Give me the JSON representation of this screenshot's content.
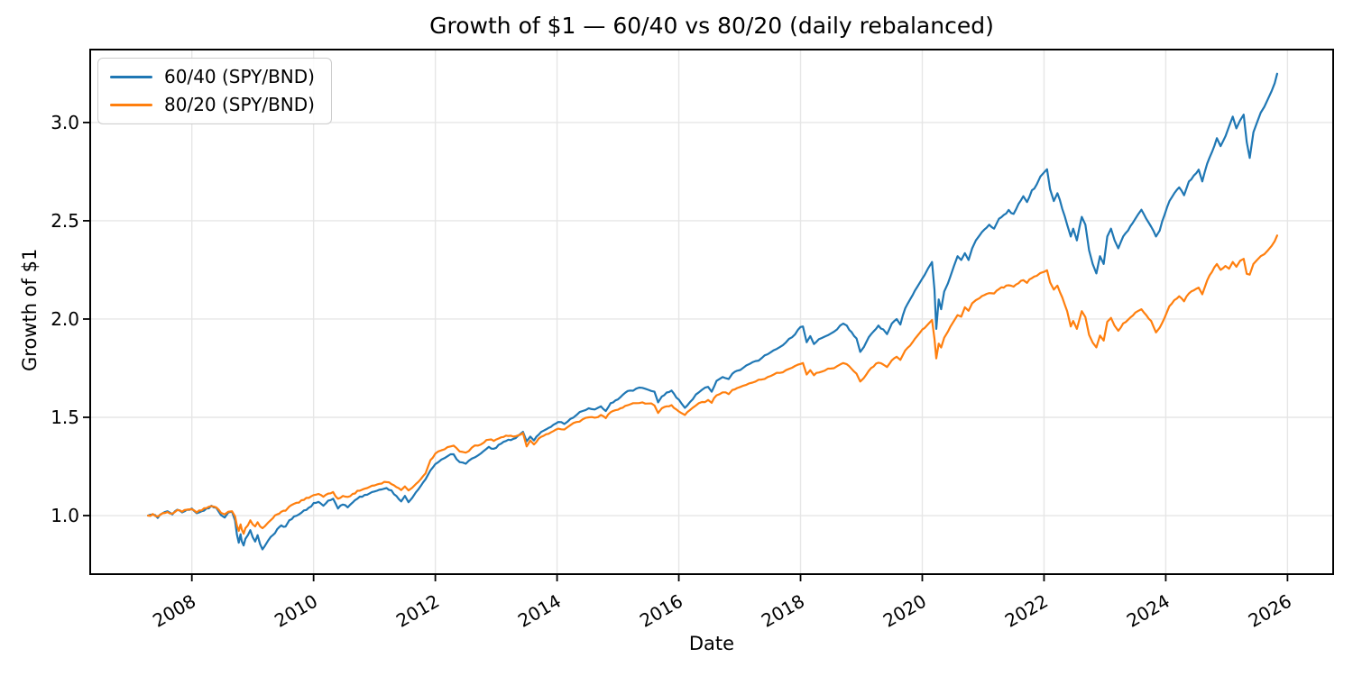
{
  "title": "Growth of $1 — 60/40 vs 80/20 (daily rebalanced)",
  "xlabel": "Date",
  "ylabel": "Growth of $1",
  "colors": {
    "background": "#ffffff",
    "grid": "#e6e6e6",
    "spine": "#000000",
    "series_blue": "#1f77b4",
    "series_orange": "#ff7f0e"
  },
  "chart_data": {
    "type": "line",
    "title": "Growth of $1 — 60/40 vs 80/20 (daily rebalanced)",
    "xlabel": "Date",
    "ylabel": "Growth of $1",
    "xlim": [
      2006.33,
      2026.75
    ],
    "ylim": [
      0.702,
      3.371
    ],
    "xticks": [
      2008,
      2010,
      2012,
      2014,
      2016,
      2018,
      2020,
      2022,
      2024,
      2026
    ],
    "yticks": [
      1.0,
      1.5,
      2.0,
      2.5,
      3.0
    ],
    "grid": true,
    "legend_position": "upper left",
    "series": [
      {
        "name": "60/40 (SPY/BND)",
        "color": "#1f77b4",
        "column": 1
      },
      {
        "name": "80/20 (SPY/BND)",
        "color": "#ff7f0e",
        "column": 2
      }
    ],
    "columns": [
      "year",
      "60/40 (SPY/BND)",
      "80/20 (SPY/BND)"
    ],
    "points": [
      [
        2007.28,
        1.0,
        1.0
      ],
      [
        2007.36,
        1.005,
        1.008
      ],
      [
        2007.44,
        0.988,
        0.996
      ],
      [
        2007.52,
        1.012,
        1.012
      ],
      [
        2007.6,
        1.022,
        1.018
      ],
      [
        2007.68,
        1.006,
        1.01
      ],
      [
        2007.76,
        1.03,
        1.028
      ],
      [
        2007.84,
        1.016,
        1.02
      ],
      [
        2007.92,
        1.03,
        1.03
      ],
      [
        2008.0,
        1.036,
        1.032
      ],
      [
        2008.08,
        1.012,
        1.016
      ],
      [
        2008.16,
        1.022,
        1.026
      ],
      [
        2008.24,
        1.036,
        1.038
      ],
      [
        2008.32,
        1.05,
        1.048
      ],
      [
        2008.4,
        1.04,
        1.042
      ],
      [
        2008.48,
        1.002,
        1.014
      ],
      [
        2008.54,
        0.99,
        1.006
      ],
      [
        2008.6,
        1.016,
        1.02
      ],
      [
        2008.66,
        1.02,
        1.022
      ],
      [
        2008.71,
        0.975,
        0.996
      ],
      [
        2008.74,
        0.905,
        0.95
      ],
      [
        2008.77,
        0.862,
        0.922
      ],
      [
        2008.8,
        0.905,
        0.955
      ],
      [
        2008.82,
        0.87,
        0.93
      ],
      [
        2008.85,
        0.848,
        0.908
      ],
      [
        2008.88,
        0.882,
        0.936
      ],
      [
        2008.92,
        0.9,
        0.95
      ],
      [
        2008.96,
        0.926,
        0.976
      ],
      [
        2009.0,
        0.89,
        0.955
      ],
      [
        2009.04,
        0.868,
        0.945
      ],
      [
        2009.08,
        0.9,
        0.966
      ],
      [
        2009.12,
        0.855,
        0.945
      ],
      [
        2009.16,
        0.828,
        0.936
      ],
      [
        2009.2,
        0.846,
        0.946
      ],
      [
        2009.26,
        0.876,
        0.966
      ],
      [
        2009.33,
        0.9,
        0.986
      ],
      [
        2009.4,
        0.93,
        1.006
      ],
      [
        2009.47,
        0.95,
        1.02
      ],
      [
        2009.54,
        0.944,
        1.025
      ],
      [
        2009.6,
        0.976,
        1.046
      ],
      [
        2009.68,
        0.996,
        1.06
      ],
      [
        2009.76,
        1.006,
        1.066
      ],
      [
        2009.84,
        1.026,
        1.08
      ],
      [
        2009.92,
        1.04,
        1.09
      ],
      [
        2010.0,
        1.064,
        1.104
      ],
      [
        2010.08,
        1.07,
        1.11
      ],
      [
        2010.16,
        1.05,
        1.096
      ],
      [
        2010.24,
        1.076,
        1.112
      ],
      [
        2010.32,
        1.086,
        1.12
      ],
      [
        2010.4,
        1.036,
        1.086
      ],
      [
        2010.48,
        1.056,
        1.1
      ],
      [
        2010.56,
        1.042,
        1.095
      ],
      [
        2010.64,
        1.066,
        1.11
      ],
      [
        2010.72,
        1.086,
        1.126
      ],
      [
        2010.8,
        1.096,
        1.132
      ],
      [
        2010.88,
        1.106,
        1.14
      ],
      [
        2010.96,
        1.12,
        1.152
      ],
      [
        2011.04,
        1.126,
        1.158
      ],
      [
        2011.12,
        1.133,
        1.163
      ],
      [
        2011.2,
        1.14,
        1.17
      ],
      [
        2011.28,
        1.128,
        1.16
      ],
      [
        2011.36,
        1.1,
        1.145
      ],
      [
        2011.44,
        1.072,
        1.13
      ],
      [
        2011.5,
        1.1,
        1.148
      ],
      [
        2011.56,
        1.068,
        1.128
      ],
      [
        2011.62,
        1.09,
        1.142
      ],
      [
        2011.68,
        1.118,
        1.16
      ],
      [
        2011.76,
        1.15,
        1.185
      ],
      [
        2011.84,
        1.185,
        1.215
      ],
      [
        2011.92,
        1.23,
        1.282
      ],
      [
        2012.0,
        1.262,
        1.315
      ],
      [
        2012.1,
        1.285,
        1.332
      ],
      [
        2012.2,
        1.302,
        1.348
      ],
      [
        2012.3,
        1.312,
        1.356
      ],
      [
        2012.4,
        1.272,
        1.326
      ],
      [
        2012.5,
        1.264,
        1.32
      ],
      [
        2012.6,
        1.29,
        1.346
      ],
      [
        2012.7,
        1.306,
        1.356
      ],
      [
        2012.8,
        1.33,
        1.372
      ],
      [
        2012.88,
        1.35,
        1.386
      ],
      [
        2012.96,
        1.34,
        1.38
      ],
      [
        2013.04,
        1.36,
        1.392
      ],
      [
        2013.12,
        1.375,
        1.4
      ],
      [
        2013.2,
        1.386,
        1.405
      ],
      [
        2013.28,
        1.39,
        1.402
      ],
      [
        2013.36,
        1.406,
        1.408
      ],
      [
        2013.44,
        1.426,
        1.42
      ],
      [
        2013.5,
        1.378,
        1.352
      ],
      [
        2013.56,
        1.402,
        1.382
      ],
      [
        2013.62,
        1.382,
        1.362
      ],
      [
        2013.7,
        1.412,
        1.392
      ],
      [
        2013.78,
        1.432,
        1.406
      ],
      [
        2013.86,
        1.446,
        1.416
      ],
      [
        2013.94,
        1.462,
        1.43
      ],
      [
        2014.02,
        1.476,
        1.442
      ],
      [
        2014.12,
        1.466,
        1.438
      ],
      [
        2014.22,
        1.492,
        1.46
      ],
      [
        2014.32,
        1.512,
        1.476
      ],
      [
        2014.42,
        1.532,
        1.49
      ],
      [
        2014.52,
        1.546,
        1.5
      ],
      [
        2014.62,
        1.54,
        1.498
      ],
      [
        2014.72,
        1.556,
        1.512
      ],
      [
        2014.8,
        1.532,
        1.496
      ],
      [
        2014.88,
        1.572,
        1.526
      ],
      [
        2014.96,
        1.586,
        1.536
      ],
      [
        2015.04,
        1.602,
        1.546
      ],
      [
        2015.12,
        1.625,
        1.558
      ],
      [
        2015.2,
        1.636,
        1.566
      ],
      [
        2015.3,
        1.646,
        1.572
      ],
      [
        2015.4,
        1.65,
        1.576
      ],
      [
        2015.5,
        1.64,
        1.57
      ],
      [
        2015.6,
        1.63,
        1.56
      ],
      [
        2015.66,
        1.576,
        1.522
      ],
      [
        2015.72,
        1.606,
        1.546
      ],
      [
        2015.8,
        1.626,
        1.556
      ],
      [
        2015.88,
        1.636,
        1.562
      ],
      [
        2015.96,
        1.6,
        1.54
      ],
      [
        2016.04,
        1.572,
        1.522
      ],
      [
        2016.1,
        1.548,
        1.512
      ],
      [
        2016.18,
        1.576,
        1.536
      ],
      [
        2016.28,
        1.616,
        1.56
      ],
      [
        2016.38,
        1.64,
        1.578
      ],
      [
        2016.48,
        1.655,
        1.588
      ],
      [
        2016.54,
        1.63,
        1.574
      ],
      [
        2016.62,
        1.685,
        1.612
      ],
      [
        2016.72,
        1.705,
        1.627
      ],
      [
        2016.82,
        1.695,
        1.618
      ],
      [
        2016.88,
        1.722,
        1.639
      ],
      [
        2016.96,
        1.737,
        1.649
      ],
      [
        2017.06,
        1.752,
        1.661
      ],
      [
        2017.16,
        1.771,
        1.673
      ],
      [
        2017.26,
        1.786,
        1.682
      ],
      [
        2017.36,
        1.801,
        1.692
      ],
      [
        2017.46,
        1.821,
        1.705
      ],
      [
        2017.56,
        1.841,
        1.718
      ],
      [
        2017.66,
        1.857,
        1.726
      ],
      [
        2017.76,
        1.881,
        1.74
      ],
      [
        2017.86,
        1.907,
        1.752
      ],
      [
        2017.96,
        1.946,
        1.768
      ],
      [
        2018.04,
        1.962,
        1.776
      ],
      [
        2018.1,
        1.882,
        1.718
      ],
      [
        2018.16,
        1.913,
        1.74
      ],
      [
        2018.22,
        1.873,
        1.714
      ],
      [
        2018.3,
        1.897,
        1.728
      ],
      [
        2018.4,
        1.911,
        1.738
      ],
      [
        2018.5,
        1.927,
        1.748
      ],
      [
        2018.6,
        1.947,
        1.76
      ],
      [
        2018.7,
        1.977,
        1.776
      ],
      [
        2018.76,
        1.967,
        1.77
      ],
      [
        2018.84,
        1.933,
        1.746
      ],
      [
        2018.92,
        1.901,
        1.722
      ],
      [
        2018.98,
        1.833,
        1.682
      ],
      [
        2019.04,
        1.857,
        1.7
      ],
      [
        2019.12,
        1.907,
        1.736
      ],
      [
        2019.2,
        1.937,
        1.758
      ],
      [
        2019.28,
        1.967,
        1.778
      ],
      [
        2019.36,
        1.947,
        1.768
      ],
      [
        2019.42,
        1.923,
        1.756
      ],
      [
        2019.5,
        1.977,
        1.79
      ],
      [
        2019.58,
        2.0,
        1.808
      ],
      [
        2019.64,
        1.972,
        1.792
      ],
      [
        2019.72,
        2.055,
        1.84
      ],
      [
        2019.8,
        2.1,
        1.865
      ],
      [
        2019.88,
        2.145,
        1.9
      ],
      [
        2019.96,
        2.185,
        1.93
      ],
      [
        2020.04,
        2.225,
        1.955
      ],
      [
        2020.1,
        2.26,
        1.975
      ],
      [
        2020.16,
        2.29,
        1.995
      ],
      [
        2020.2,
        2.15,
        1.9
      ],
      [
        2020.23,
        1.95,
        1.8
      ],
      [
        2020.27,
        2.1,
        1.875
      ],
      [
        2020.31,
        2.05,
        1.855
      ],
      [
        2020.36,
        2.14,
        1.905
      ],
      [
        2020.42,
        2.18,
        1.935
      ],
      [
        2020.46,
        2.215,
        1.96
      ],
      [
        2020.52,
        2.27,
        1.99
      ],
      [
        2020.58,
        2.32,
        2.02
      ],
      [
        2020.64,
        2.3,
        2.012
      ],
      [
        2020.7,
        2.335,
        2.06
      ],
      [
        2020.76,
        2.3,
        2.042
      ],
      [
        2020.82,
        2.36,
        2.08
      ],
      [
        2020.88,
        2.4,
        2.096
      ],
      [
        2020.94,
        2.425,
        2.106
      ],
      [
        2021.02,
        2.455,
        2.122
      ],
      [
        2021.1,
        2.48,
        2.132
      ],
      [
        2021.18,
        2.46,
        2.13
      ],
      [
        2021.26,
        2.51,
        2.152
      ],
      [
        2021.34,
        2.53,
        2.16
      ],
      [
        2021.42,
        2.555,
        2.172
      ],
      [
        2021.5,
        2.535,
        2.165
      ],
      [
        2021.58,
        2.585,
        2.182
      ],
      [
        2021.66,
        2.625,
        2.198
      ],
      [
        2021.72,
        2.595,
        2.184
      ],
      [
        2021.8,
        2.655,
        2.208
      ],
      [
        2021.88,
        2.685,
        2.22
      ],
      [
        2021.94,
        2.725,
        2.234
      ],
      [
        2022.0,
        2.746,
        2.24
      ],
      [
        2022.05,
        2.762,
        2.248
      ],
      [
        2022.1,
        2.66,
        2.186
      ],
      [
        2022.16,
        2.6,
        2.15
      ],
      [
        2022.22,
        2.64,
        2.17
      ],
      [
        2022.3,
        2.56,
        2.11
      ],
      [
        2022.38,
        2.48,
        2.04
      ],
      [
        2022.44,
        2.42,
        1.962
      ],
      [
        2022.48,
        2.46,
        1.99
      ],
      [
        2022.54,
        2.4,
        1.95
      ],
      [
        2022.62,
        2.52,
        2.04
      ],
      [
        2022.68,
        2.48,
        2.01
      ],
      [
        2022.74,
        2.35,
        1.92
      ],
      [
        2022.8,
        2.28,
        1.88
      ],
      [
        2022.86,
        2.232,
        1.856
      ],
      [
        2022.92,
        2.32,
        1.916
      ],
      [
        2022.98,
        2.28,
        1.89
      ],
      [
        2023.04,
        2.42,
        1.986
      ],
      [
        2023.1,
        2.46,
        2.006
      ],
      [
        2023.16,
        2.4,
        1.966
      ],
      [
        2023.22,
        2.36,
        1.94
      ],
      [
        2023.3,
        2.42,
        1.978
      ],
      [
        2023.38,
        2.45,
        1.996
      ],
      [
        2023.46,
        2.49,
        2.018
      ],
      [
        2023.54,
        2.53,
        2.04
      ],
      [
        2023.6,
        2.556,
        2.05
      ],
      [
        2023.68,
        2.51,
        2.02
      ],
      [
        2023.76,
        2.47,
        1.99
      ],
      [
        2023.84,
        2.42,
        1.932
      ],
      [
        2023.9,
        2.45,
        1.956
      ],
      [
        2023.98,
        2.53,
        2.006
      ],
      [
        2024.06,
        2.6,
        2.066
      ],
      [
        2024.14,
        2.64,
        2.096
      ],
      [
        2024.22,
        2.67,
        2.116
      ],
      [
        2024.3,
        2.63,
        2.09
      ],
      [
        2024.38,
        2.7,
        2.13
      ],
      [
        2024.46,
        2.73,
        2.146
      ],
      [
        2024.54,
        2.76,
        2.16
      ],
      [
        2024.6,
        2.7,
        2.126
      ],
      [
        2024.68,
        2.79,
        2.196
      ],
      [
        2024.76,
        2.85,
        2.24
      ],
      [
        2024.84,
        2.92,
        2.28
      ],
      [
        2024.9,
        2.88,
        2.25
      ],
      [
        2024.98,
        2.93,
        2.27
      ],
      [
        2025.04,
        2.98,
        2.256
      ],
      [
        2025.1,
        3.03,
        2.29
      ],
      [
        2025.16,
        2.97,
        2.266
      ],
      [
        2025.22,
        3.01,
        2.296
      ],
      [
        2025.28,
        3.04,
        2.306
      ],
      [
        2025.33,
        2.9,
        2.23
      ],
      [
        2025.38,
        2.82,
        2.226
      ],
      [
        2025.44,
        2.95,
        2.28
      ],
      [
        2025.5,
        3.0,
        2.3
      ],
      [
        2025.56,
        3.05,
        2.32
      ],
      [
        2025.62,
        3.08,
        2.33
      ],
      [
        2025.68,
        3.12,
        2.35
      ],
      [
        2025.74,
        3.16,
        2.372
      ],
      [
        2025.79,
        3.2,
        2.396
      ],
      [
        2025.83,
        3.248,
        2.425
      ]
    ]
  }
}
